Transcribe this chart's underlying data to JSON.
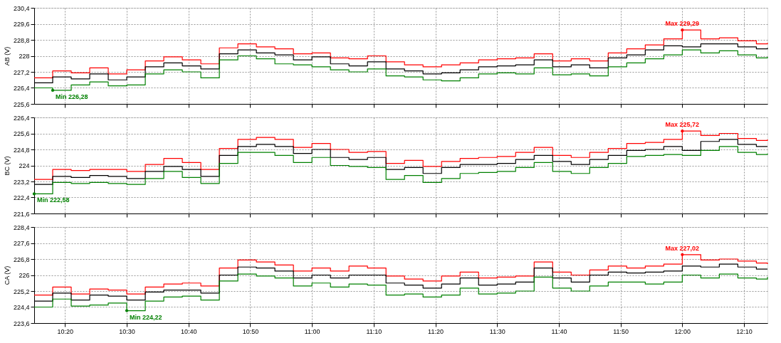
{
  "chart_data": [
    {
      "type": "step",
      "ylabel": "AB (V)",
      "grid": true,
      "legend": false,
      "tick_labels": "y",
      "x": [
        10.25,
        10.3,
        10.35,
        10.4,
        10.45,
        10.5,
        10.55,
        10.6,
        10.65,
        10.7,
        10.75,
        10.8,
        10.85,
        10.9,
        10.95,
        11.0,
        11.05,
        11.1,
        11.15,
        11.2,
        11.25,
        11.3,
        11.35,
        11.4,
        11.45,
        11.5,
        11.55,
        11.6,
        11.65,
        11.7,
        11.75,
        11.8,
        11.85,
        11.9,
        11.95,
        12.0,
        12.05,
        12.1,
        12.15,
        12.2,
        12.23
      ],
      "xlim": [
        10.25,
        12.23
      ],
      "xticks": [
        {
          "value": 10.3333,
          "label": null
        },
        {
          "value": 10.5,
          "label": null
        },
        {
          "value": 10.6667,
          "label": null
        },
        {
          "value": 10.8333,
          "label": null
        },
        {
          "value": 11.0,
          "label": null
        },
        {
          "value": 11.1667,
          "label": null
        },
        {
          "value": 11.3333,
          "label": null
        },
        {
          "value": 11.5,
          "label": null
        },
        {
          "value": 11.6667,
          "label": null
        },
        {
          "value": 11.8333,
          "label": null
        },
        {
          "value": 12.0,
          "label": null
        },
        {
          "value": 12.1667,
          "label": null
        }
      ],
      "ylim": [
        225.6,
        230.4
      ],
      "yticks": [
        {
          "value": 225.6,
          "label": "225,6"
        },
        {
          "value": 226.4,
          "label": "226,4"
        },
        {
          "value": 227.2,
          "label": "227,2"
        },
        {
          "value": 228,
          "label": "228"
        },
        {
          "value": 228.8,
          "label": "228,8"
        },
        {
          "value": 229.6,
          "label": "229,6"
        },
        {
          "value": 230.4,
          "label": "230,4"
        }
      ],
      "series": [
        {
          "color": "#ff0000",
          "values": [
            226.9,
            227.25,
            227.15,
            227.4,
            227.1,
            227.3,
            227.75,
            227.95,
            227.8,
            227.6,
            228.4,
            228.6,
            228.45,
            228.35,
            228.1,
            228.15,
            227.9,
            227.85,
            228.0,
            227.7,
            227.55,
            227.45,
            227.55,
            227.65,
            227.8,
            227.85,
            227.9,
            228.1,
            227.75,
            227.85,
            227.75,
            228.15,
            228.35,
            228.55,
            228.85,
            229.29,
            228.85,
            228.9,
            228.75,
            228.6,
            228.65
          ]
        },
        {
          "color": "#000000",
          "values": [
            226.65,
            226.95,
            226.85,
            227.1,
            226.8,
            226.95,
            227.45,
            227.65,
            227.5,
            227.35,
            228.1,
            228.3,
            228.15,
            228.05,
            227.8,
            227.95,
            227.6,
            227.5,
            227.7,
            227.35,
            227.25,
            227.1,
            227.15,
            227.3,
            227.45,
            227.5,
            227.55,
            227.8,
            227.45,
            227.55,
            227.4,
            227.9,
            228.05,
            228.3,
            228.5,
            228.45,
            228.6,
            228.6,
            228.45,
            228.35,
            228.4
          ]
        },
        {
          "color": "#008000",
          "values": [
            226.4,
            226.28,
            226.55,
            226.7,
            226.5,
            226.55,
            227.1,
            227.3,
            227.2,
            226.9,
            227.8,
            228.0,
            227.85,
            227.6,
            227.55,
            227.45,
            227.3,
            227.2,
            227.35,
            227.0,
            226.95,
            226.8,
            226.75,
            226.9,
            227.1,
            227.15,
            227.1,
            227.4,
            227.05,
            227.1,
            227.0,
            227.45,
            227.65,
            227.85,
            228.05,
            228.3,
            228.15,
            228.25,
            228.05,
            227.9,
            227.95
          ]
        }
      ],
      "annotations": [
        {
          "text": "Max 229,29",
          "x": 12.0,
          "y": 229.29
        },
        {
          "text": "Min 226,28",
          "x": 10.3,
          "y": 226.28
        }
      ]
    },
    {
      "type": "step",
      "ylabel": "BC (V)",
      "grid": true,
      "legend": false,
      "tick_labels": "y",
      "x": [
        10.25,
        10.3,
        10.35,
        10.4,
        10.45,
        10.5,
        10.55,
        10.6,
        10.65,
        10.7,
        10.75,
        10.8,
        10.85,
        10.9,
        10.95,
        11.0,
        11.05,
        11.1,
        11.15,
        11.2,
        11.25,
        11.3,
        11.35,
        11.4,
        11.45,
        11.5,
        11.55,
        11.6,
        11.65,
        11.7,
        11.75,
        11.8,
        11.85,
        11.9,
        11.95,
        12.0,
        12.05,
        12.1,
        12.15,
        12.2,
        12.23
      ],
      "xlim": [
        10.25,
        12.23
      ],
      "xticks": [
        {
          "value": 10.3333,
          "label": null
        },
        {
          "value": 10.5,
          "label": null
        },
        {
          "value": 10.6667,
          "label": null
        },
        {
          "value": 10.8333,
          "label": null
        },
        {
          "value": 11.0,
          "label": null
        },
        {
          "value": 11.1667,
          "label": null
        },
        {
          "value": 11.3333,
          "label": null
        },
        {
          "value": 11.5,
          "label": null
        },
        {
          "value": 11.6667,
          "label": null
        },
        {
          "value": 11.8333,
          "label": null
        },
        {
          "value": 12.0,
          "label": null
        },
        {
          "value": 12.1667,
          "label": null
        }
      ],
      "ylim": [
        221.6,
        226.4
      ],
      "yticks": [
        {
          "value": 221.6,
          "label": "221,6"
        },
        {
          "value": 222.4,
          "label": "222,4"
        },
        {
          "value": 223.2,
          "label": "223,2"
        },
        {
          "value": 224,
          "label": "224"
        },
        {
          "value": 224.8,
          "label": "224,8"
        },
        {
          "value": 225.6,
          "label": "225,6"
        },
        {
          "value": 226.4,
          "label": "226,4"
        }
      ],
      "series": [
        {
          "color": "#ff0000",
          "values": [
            223.3,
            223.8,
            223.75,
            223.8,
            223.8,
            223.7,
            224.05,
            224.35,
            224.15,
            223.8,
            224.85,
            225.3,
            225.4,
            225.3,
            224.9,
            225.1,
            224.8,
            224.65,
            224.7,
            224.1,
            224.25,
            223.95,
            224.2,
            224.35,
            224.4,
            224.45,
            224.65,
            224.9,
            224.5,
            224.4,
            224.65,
            224.85,
            225.1,
            225.15,
            225.3,
            225.72,
            225.5,
            225.6,
            225.35,
            225.25,
            225.3
          ]
        },
        {
          "color": "#000000",
          "values": [
            223.05,
            223.45,
            223.4,
            223.5,
            223.45,
            223.35,
            223.7,
            223.95,
            223.8,
            223.45,
            224.5,
            224.95,
            225.05,
            224.95,
            224.6,
            224.8,
            224.4,
            224.3,
            224.4,
            223.8,
            223.9,
            223.6,
            223.9,
            224.05,
            224.05,
            224.1,
            224.3,
            224.5,
            224.2,
            224.05,
            224.3,
            224.5,
            224.75,
            224.8,
            224.95,
            224.75,
            225.2,
            225.3,
            225.05,
            224.95,
            224.95
          ]
        },
        {
          "color": "#008000",
          "values": [
            222.58,
            223.15,
            223.1,
            223.15,
            223.1,
            223.05,
            223.35,
            223.7,
            223.4,
            223.1,
            224.1,
            224.65,
            224.65,
            224.5,
            224.15,
            224.4,
            224.0,
            223.95,
            223.9,
            223.3,
            223.5,
            223.15,
            223.35,
            223.6,
            223.65,
            223.7,
            223.9,
            224.15,
            223.7,
            223.6,
            223.9,
            224.1,
            224.45,
            224.5,
            224.55,
            224.5,
            224.75,
            224.95,
            224.65,
            224.55,
            224.6
          ]
        }
      ],
      "annotations": [
        {
          "text": "Max 225,72",
          "x": 12.0,
          "y": 225.72
        },
        {
          "text": "Min 222,58",
          "x": 10.25,
          "y": 222.58
        }
      ]
    },
    {
      "type": "step",
      "ylabel": "CA (V)",
      "grid": true,
      "legend": false,
      "x": [
        10.25,
        10.3,
        10.35,
        10.4,
        10.45,
        10.5,
        10.55,
        10.6,
        10.65,
        10.7,
        10.75,
        10.8,
        10.85,
        10.9,
        10.95,
        11.0,
        11.05,
        11.1,
        11.15,
        11.2,
        11.25,
        11.3,
        11.35,
        11.4,
        11.45,
        11.5,
        11.55,
        11.6,
        11.65,
        11.7,
        11.75,
        11.8,
        11.85,
        11.9,
        11.95,
        12.0,
        12.05,
        12.1,
        12.15,
        12.2,
        12.23
      ],
      "xlim": [
        10.25,
        12.23
      ],
      "xticks": [
        {
          "value": 10.3333,
          "label": "10:20"
        },
        {
          "value": 10.5,
          "label": "10:30"
        },
        {
          "value": 10.6667,
          "label": "10:40"
        },
        {
          "value": 10.8333,
          "label": "10:50"
        },
        {
          "value": 11.0,
          "label": "11:00"
        },
        {
          "value": 11.1667,
          "label": "11:10"
        },
        {
          "value": 11.3333,
          "label": "11:20"
        },
        {
          "value": 11.5,
          "label": "11:30"
        },
        {
          "value": 11.6667,
          "label": "11:40"
        },
        {
          "value": 11.8333,
          "label": "11:50"
        },
        {
          "value": 12.0,
          "label": "12:00"
        },
        {
          "value": 12.1667,
          "label": "12:10"
        }
      ],
      "ylim": [
        223.6,
        228.4
      ],
      "yticks": [
        {
          "value": 223.6,
          "label": "223,6"
        },
        {
          "value": 224.4,
          "label": "224,4"
        },
        {
          "value": 225.2,
          "label": "225,2"
        },
        {
          "value": 226,
          "label": "226"
        },
        {
          "value": 226.8,
          "label": "226,8"
        },
        {
          "value": 227.6,
          "label": "227,6"
        },
        {
          "value": 228.4,
          "label": "228,4"
        }
      ],
      "series": [
        {
          "color": "#ff0000",
          "values": [
            225.0,
            225.4,
            225.05,
            225.3,
            225.25,
            225.05,
            225.4,
            225.55,
            225.6,
            225.45,
            226.35,
            226.75,
            226.65,
            226.5,
            226.2,
            226.35,
            226.2,
            226.45,
            226.35,
            225.95,
            225.8,
            225.7,
            225.95,
            226.15,
            225.85,
            225.9,
            225.95,
            226.65,
            226.15,
            226.0,
            226.25,
            226.45,
            226.35,
            226.45,
            226.55,
            227.02,
            226.75,
            226.8,
            226.7,
            226.6,
            226.55
          ]
        },
        {
          "color": "#000000",
          "values": [
            224.7,
            225.1,
            224.75,
            225.0,
            224.95,
            224.75,
            225.15,
            225.25,
            225.25,
            225.1,
            226.0,
            226.4,
            226.35,
            226.2,
            225.85,
            226.0,
            225.85,
            226.0,
            226.0,
            225.6,
            225.5,
            225.35,
            225.55,
            225.85,
            225.5,
            225.55,
            225.65,
            226.35,
            225.85,
            225.65,
            226.0,
            226.15,
            226.1,
            226.15,
            226.2,
            226.45,
            226.4,
            226.55,
            226.4,
            226.3,
            226.3
          ]
        },
        {
          "color": "#008000",
          "values": [
            224.4,
            224.8,
            224.45,
            224.5,
            224.6,
            224.22,
            224.7,
            224.9,
            224.95,
            224.75,
            225.7,
            226.05,
            225.95,
            225.85,
            225.45,
            225.6,
            225.4,
            225.55,
            225.5,
            225.0,
            225.05,
            224.9,
            225.0,
            225.35,
            225.05,
            225.1,
            225.2,
            225.9,
            225.35,
            225.2,
            225.45,
            225.65,
            225.65,
            225.55,
            225.65,
            226.0,
            225.85,
            226.05,
            225.85,
            225.8,
            225.9
          ]
        }
      ],
      "annotations": [
        {
          "text": "Max 227,02",
          "x": 12.0,
          "y": 227.02
        },
        {
          "text": "Min 224,22",
          "x": 10.5,
          "y": 224.22
        }
      ]
    }
  ]
}
